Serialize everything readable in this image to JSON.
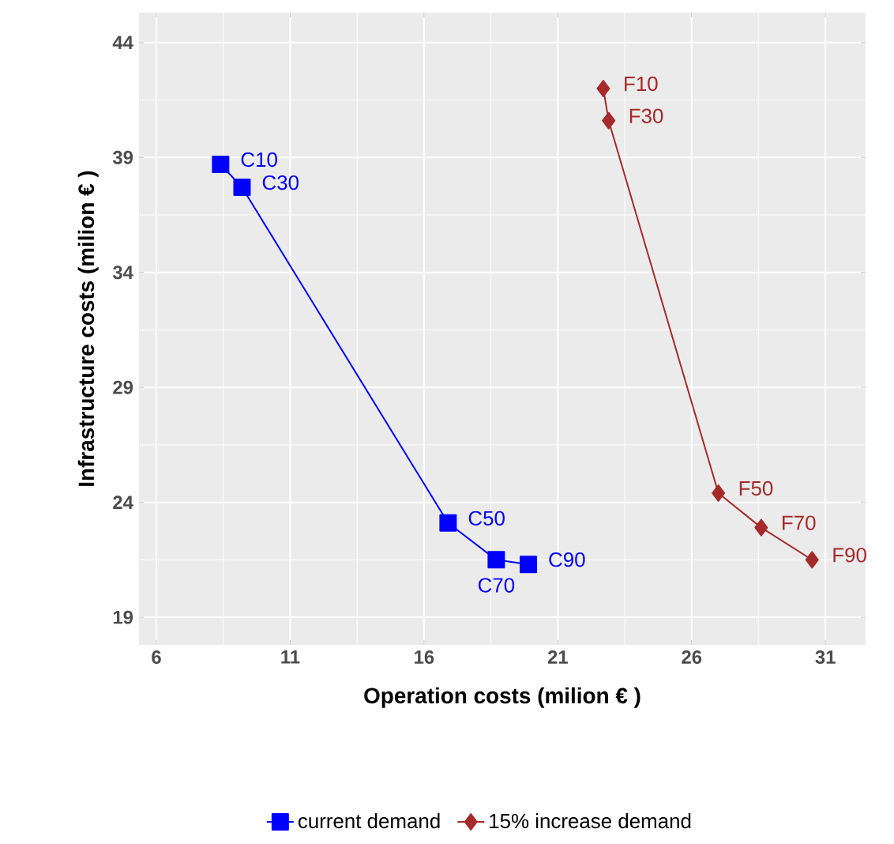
{
  "chart_data": {
    "type": "line",
    "xlabel": "Operation costs (milion € )",
    "ylabel": "Infrastructure costs (milion € )",
    "xlim": [
      5.35,
      32.5
    ],
    "ylim": [
      17.8,
      45.3
    ],
    "xticks": [
      6,
      11,
      16,
      21,
      26,
      31
    ],
    "yticks": [
      19,
      24,
      29,
      34,
      39,
      44
    ],
    "grid": true,
    "legend": "bottom",
    "series": [
      {
        "name": "current demand",
        "color": "#0000ff",
        "marker": "square",
        "x": [
          8.4,
          9.2,
          16.9,
          18.7,
          19.9
        ],
        "values": [
          38.7,
          37.7,
          23.1,
          21.5,
          21.3
        ]
      },
      {
        "name": "15% increase demand",
        "color": "#a52a2a",
        "marker": "diamond",
        "x": [
          22.7,
          22.9,
          27.0,
          28.6,
          30.5
        ],
        "values": [
          42.0,
          40.6,
          24.4,
          22.9,
          21.5
        ]
      }
    ],
    "annotations": [
      {
        "text": "C10",
        "x": 8.4,
        "y": 38.7
      },
      {
        "text": "C30",
        "x": 9.2,
        "y": 37.7
      },
      {
        "text": "C50",
        "x": 16.9,
        "y": 23.1
      },
      {
        "text": "C70",
        "x": 18.7,
        "y": 21.5
      },
      {
        "text": "C90",
        "x": 19.9,
        "y": 21.3
      },
      {
        "text": "F10",
        "x": 22.7,
        "y": 42.0
      },
      {
        "text": "F30",
        "x": 22.9,
        "y": 40.6
      },
      {
        "text": "F50",
        "x": 27.0,
        "y": 24.4
      },
      {
        "text": "F70",
        "x": 28.6,
        "y": 22.9
      },
      {
        "text": "F90",
        "x": 30.5,
        "y": 21.5
      }
    ]
  }
}
